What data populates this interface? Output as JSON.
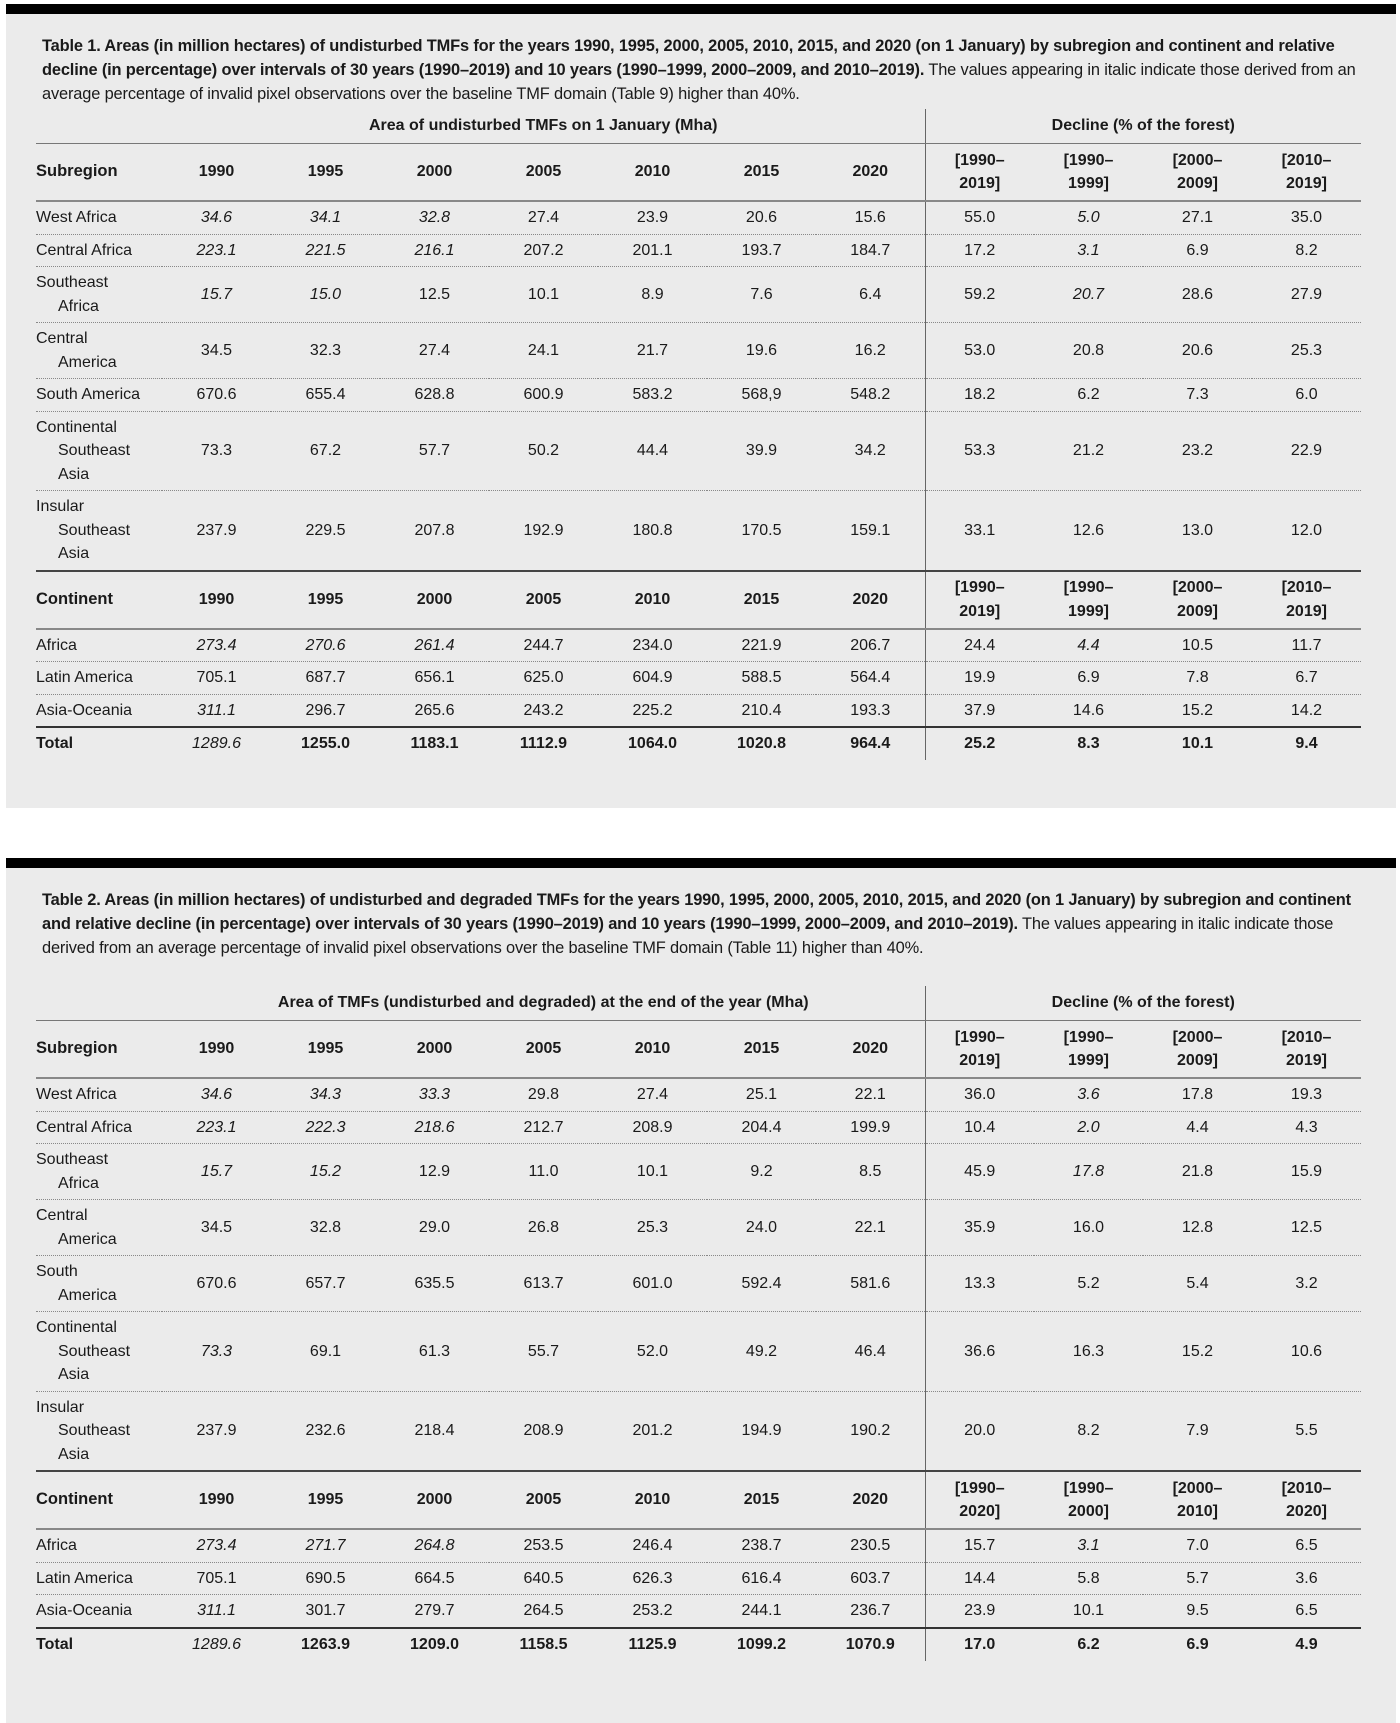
{
  "tables": [
    {
      "caption_bold": "Table 1. Areas (in million hectares) of undisturbed TMFs for the years 1990, 1995, 2000, 2005, 2010, 2015, and 2020 (on 1 January) by subregion and continent and relative decline (in percentage) over intervals of 30 years (1990–2019) and 10 years (1990–1999, 2000–2009, and 2010–2019).",
      "caption_rest": " The values appearing in italic indicate those derived from an average percentage of invalid pixel observations over the baseline TMF domain (Table 9) higher than 40%.",
      "area_header": "Area of undisturbed TMFs on 1 January (Mha)",
      "decline_header": "Decline (% of the forest)",
      "subregion_label": "Subregion",
      "continent_label": "Continent",
      "years": [
        "1990",
        "1995",
        "2000",
        "2005",
        "2010",
        "2015",
        "2020"
      ],
      "subregion_intervals": [
        [
          "[1990–",
          "2019]"
        ],
        [
          "[1990–",
          "1999]"
        ],
        [
          "[2000–",
          "2009]"
        ],
        [
          "[2010–",
          "2019]"
        ]
      ],
      "continent_intervals": [
        [
          "[1990–",
          "2019]"
        ],
        [
          "[1990–",
          "1999]"
        ],
        [
          "[2000–",
          "2009]"
        ],
        [
          "[2010–",
          "2019]"
        ]
      ],
      "subregions": [
        {
          "name_lines": [
            "West Africa"
          ],
          "area": [
            "34.6",
            "34.1",
            "32.8",
            "27.4",
            "23.9",
            "20.6",
            "15.6"
          ],
          "decline": [
            "55.0",
            "5.0",
            "27.1",
            "35.0"
          ],
          "italic_area": [
            0,
            1,
            2
          ],
          "italic_decline": [
            1
          ]
        },
        {
          "name_lines": [
            "Central Africa"
          ],
          "area": [
            "223.1",
            "221.5",
            "216.1",
            "207.2",
            "201.1",
            "193.7",
            "184.7"
          ],
          "decline": [
            "17.2",
            "3.1",
            "6.9",
            "8.2"
          ],
          "italic_area": [
            0,
            1,
            2
          ],
          "italic_decline": [
            1
          ]
        },
        {
          "name_lines": [
            "Southeast",
            "Africa"
          ],
          "area": [
            "15.7",
            "15.0",
            "12.5",
            "10.1",
            "8.9",
            "7.6",
            "6.4"
          ],
          "decline": [
            "59.2",
            "20.7",
            "28.6",
            "27.9"
          ],
          "italic_area": [
            0,
            1
          ],
          "italic_decline": [
            1
          ]
        },
        {
          "name_lines": [
            "Central",
            "America"
          ],
          "area": [
            "34.5",
            "32.3",
            "27.4",
            "24.1",
            "21.7",
            "19.6",
            "16.2"
          ],
          "decline": [
            "53.0",
            "20.8",
            "20.6",
            "25.3"
          ],
          "italic_area": [],
          "italic_decline": []
        },
        {
          "name_lines": [
            "South America"
          ],
          "area": [
            "670.6",
            "655.4",
            "628.8",
            "600.9",
            "583.2",
            "568,9",
            "548.2"
          ],
          "decline": [
            "18.2",
            "6.2",
            "7.3",
            "6.0"
          ],
          "italic_area": [],
          "italic_decline": []
        },
        {
          "name_lines": [
            "Continental",
            "Southeast",
            "Asia"
          ],
          "area": [
            "73.3",
            "67.2",
            "57.7",
            "50.2",
            "44.4",
            "39.9",
            "34.2"
          ],
          "decline": [
            "53.3",
            "21.2",
            "23.2",
            "22.9"
          ],
          "italic_area": [],
          "italic_decline": []
        },
        {
          "name_lines": [
            "Insular",
            "Southeast",
            "Asia"
          ],
          "area": [
            "237.9",
            "229.5",
            "207.8",
            "192.9",
            "180.8",
            "170.5",
            "159.1"
          ],
          "decline": [
            "33.1",
            "12.6",
            "13.0",
            "12.0"
          ],
          "italic_area": [],
          "italic_decline": []
        }
      ],
      "continents": [
        {
          "name_lines": [
            "Africa"
          ],
          "area": [
            "273.4",
            "270.6",
            "261.4",
            "244.7",
            "234.0",
            "221.9",
            "206.7"
          ],
          "decline": [
            "24.4",
            "4.4",
            "10.5",
            "11.7"
          ],
          "italic_area": [
            0,
            1,
            2
          ],
          "italic_decline": [
            1
          ]
        },
        {
          "name_lines": [
            "Latin America"
          ],
          "area": [
            "705.1",
            "687.7",
            "656.1",
            "625.0",
            "604.9",
            "588.5",
            "564.4"
          ],
          "decline": [
            "19.9",
            "6.9",
            "7.8",
            "6.7"
          ],
          "italic_area": [],
          "italic_decline": []
        },
        {
          "name_lines": [
            "Asia-Oceania"
          ],
          "area": [
            "311.1",
            "296.7",
            "265.6",
            "243.2",
            "225.2",
            "210.4",
            "193.3"
          ],
          "decline": [
            "37.9",
            "14.6",
            "15.2",
            "14.2"
          ],
          "italic_area": [
            0
          ],
          "italic_decline": []
        }
      ],
      "total": {
        "name_lines": [
          "Total"
        ],
        "area": [
          "1289.6",
          "1255.0",
          "1183.1",
          "1112.9",
          "1064.0",
          "1020.8",
          "964.4"
        ],
        "decline": [
          "25.2",
          "8.3",
          "10.1",
          "9.4"
        ],
        "italic_area": [
          0
        ],
        "italic_decline": []
      }
    },
    {
      "caption_bold": "Table 2. Areas (in million hectares) of undisturbed and degraded TMFs for the years 1990, 1995, 2000, 2005, 2010, 2015, and 2020 (on 1 January) by subregion and continent and relative decline (in percentage) over intervals of 30 years (1990–2019) and 10 years (1990–1999, 2000–2009, and 2010–2019).",
      "caption_rest": " The values appearing in italic indicate those derived from an average percentage of invalid pixel observations over the baseline TMF domain (Table 11) higher than 40%.",
      "area_header": "Area of TMFs (undisturbed and degraded) at the end of the year (Mha)",
      "decline_header": "Decline (% of the forest)",
      "subregion_label": "Subregion",
      "continent_label": "Continent",
      "years": [
        "1990",
        "1995",
        "2000",
        "2005",
        "2010",
        "2015",
        "2020"
      ],
      "subregion_intervals": [
        [
          "[1990–",
          "2019]"
        ],
        [
          "[1990–",
          "1999]"
        ],
        [
          "[2000–",
          "2009]"
        ],
        [
          "[2010–",
          "2019]"
        ]
      ],
      "continent_intervals": [
        [
          "[1990–",
          "2020]"
        ],
        [
          "[1990–",
          "2000]"
        ],
        [
          "[2000–",
          "2010]"
        ],
        [
          "[2010–",
          "2020]"
        ]
      ],
      "subregions": [
        {
          "name_lines": [
            "West Africa"
          ],
          "area": [
            "34.6",
            "34.3",
            "33.3",
            "29.8",
            "27.4",
            "25.1",
            "22.1"
          ],
          "decline": [
            "36.0",
            "3.6",
            "17.8",
            "19.3"
          ],
          "italic_area": [
            0,
            1,
            2
          ],
          "italic_decline": [
            1
          ]
        },
        {
          "name_lines": [
            "Central Africa"
          ],
          "area": [
            "223.1",
            "222.3",
            "218.6",
            "212.7",
            "208.9",
            "204.4",
            "199.9"
          ],
          "decline": [
            "10.4",
            "2.0",
            "4.4",
            "4.3"
          ],
          "italic_area": [
            0,
            1,
            2
          ],
          "italic_decline": [
            1
          ]
        },
        {
          "name_lines": [
            "Southeast",
            "Africa"
          ],
          "area": [
            "15.7",
            "15.2",
            "12.9",
            "11.0",
            "10.1",
            "9.2",
            "8.5"
          ],
          "decline": [
            "45.9",
            "17.8",
            "21.8",
            "15.9"
          ],
          "italic_area": [
            0,
            1
          ],
          "italic_decline": [
            1
          ]
        },
        {
          "name_lines": [
            "Central",
            "America"
          ],
          "area": [
            "34.5",
            "32.8",
            "29.0",
            "26.8",
            "25.3",
            "24.0",
            "22.1"
          ],
          "decline": [
            "35.9",
            "16.0",
            "12.8",
            "12.5"
          ],
          "italic_area": [],
          "italic_decline": []
        },
        {
          "name_lines": [
            "South",
            "America"
          ],
          "area": [
            "670.6",
            "657.7",
            "635.5",
            "613.7",
            "601.0",
            "592.4",
            "581.6"
          ],
          "decline": [
            "13.3",
            "5.2",
            "5.4",
            "3.2"
          ],
          "italic_area": [],
          "italic_decline": []
        },
        {
          "name_lines": [
            "Continental",
            "Southeast",
            "Asia"
          ],
          "area": [
            "73.3",
            "69.1",
            "61.3",
            "55.7",
            "52.0",
            "49.2",
            "46.4"
          ],
          "decline": [
            "36.6",
            "16.3",
            "15.2",
            "10.6"
          ],
          "italic_area": [
            0
          ],
          "italic_decline": []
        },
        {
          "name_lines": [
            "Insular",
            "Southeast",
            "Asia"
          ],
          "area": [
            "237.9",
            "232.6",
            "218.4",
            "208.9",
            "201.2",
            "194.9",
            "190.2"
          ],
          "decline": [
            "20.0",
            "8.2",
            "7.9",
            "5.5"
          ],
          "italic_area": [],
          "italic_decline": []
        }
      ],
      "continents": [
        {
          "name_lines": [
            "Africa"
          ],
          "area": [
            "273.4",
            "271.7",
            "264.8",
            "253.5",
            "246.4",
            "238.7",
            "230.5"
          ],
          "decline": [
            "15.7",
            "3.1",
            "7.0",
            "6.5"
          ],
          "italic_area": [
            0,
            1,
            2
          ],
          "italic_decline": [
            1
          ]
        },
        {
          "name_lines": [
            "Latin America"
          ],
          "area": [
            "705.1",
            "690.5",
            "664.5",
            "640.5",
            "626.3",
            "616.4",
            "603.7"
          ],
          "decline": [
            "14.4",
            "5.8",
            "5.7",
            "3.6"
          ],
          "italic_area": [],
          "italic_decline": []
        },
        {
          "name_lines": [
            "Asia-Oceania"
          ],
          "area": [
            "311.1",
            "301.7",
            "279.7",
            "264.5",
            "253.2",
            "244.1",
            "236.7"
          ],
          "decline": [
            "23.9",
            "10.1",
            "9.5",
            "6.5"
          ],
          "italic_area": [
            0
          ],
          "italic_decline": []
        }
      ],
      "total": {
        "name_lines": [
          "Total"
        ],
        "area": [
          "1289.6",
          "1263.9",
          "1209.0",
          "1158.5",
          "1125.9",
          "1099.2",
          "1070.9"
        ],
        "decline": [
          "17.0",
          "6.2",
          "6.9",
          "4.9"
        ],
        "italic_area": [
          0
        ],
        "italic_decline": []
      }
    }
  ]
}
